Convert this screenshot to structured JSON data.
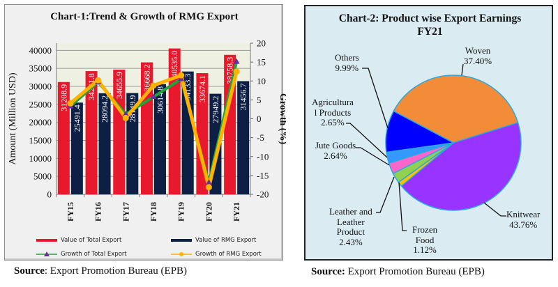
{
  "chart_data": [
    {
      "type": "bar",
      "title": "Chart-1:Trend  & Growth of RMG Export",
      "xlabel": "",
      "ylabel": "Amount (Million USD)",
      "y2label": "Growth (%)",
      "categories": [
        "FY15",
        "FY16",
        "FY17",
        "FY18",
        "FY19",
        "FY20",
        "FY21"
      ],
      "ylim": [
        0,
        42000
      ],
      "yticks": [
        "0",
        "5000",
        "10000",
        "15000",
        "20000",
        "25000",
        "30000",
        "35000",
        "40000"
      ],
      "y2lim": [
        -20,
        20
      ],
      "y2ticks": [
        "-20",
        "-15",
        "-10",
        "-5",
        "0",
        "5",
        "10",
        "15",
        "20"
      ],
      "grid": true,
      "legend_position": "bottom",
      "series": [
        {
          "name": "Value of Total Export",
          "kind": "bar",
          "axis": "left",
          "color": "#e8192c",
          "values": [
            31208.9,
            34241.8,
            34655.9,
            36668.2,
            40535.0,
            33674.1,
            38758.3
          ],
          "labels": [
            "31208.9",
            "34241.8",
            "34655.9",
            "36668.2",
            "40535.0",
            "33674.1",
            "38758.3"
          ]
        },
        {
          "name": "Value of RMG Export",
          "kind": "bar",
          "axis": "left",
          "color": "#0d1f45",
          "values": [
            25491.4,
            28094.2,
            28149.9,
            30614.8,
            34133.3,
            27949.2,
            31456.7
          ],
          "labels": [
            "25491.4",
            "28094.2",
            "28149.9",
            "30614.8",
            "34133.3",
            "27949.2",
            "31456.7"
          ]
        },
        {
          "name": "Growth of Total Export",
          "kind": "line",
          "axis": "right",
          "color": "#1fa33a",
          "marker_color": "#6a2c9e",
          "marker": "triangle",
          "values": [
            3.3,
            9.7,
            1.2,
            5.8,
            10.5,
            -16.9,
            15.1
          ]
        },
        {
          "name": "Growth of RMG Export",
          "kind": "line",
          "axis": "right",
          "color": "#ffb300",
          "marker_color": "#ffb300",
          "marker": "diamond",
          "values": [
            4.1,
            10.2,
            0.2,
            8.8,
            11.5,
            -18.1,
            12.5
          ]
        }
      ],
      "source_label": "Source",
      "source_text": ": Export Promotion Bureau (EPB)"
    },
    {
      "type": "pie",
      "title": "Chart-2: Product wise Export Earnings",
      "subtitle": "FY21",
      "slices": [
        {
          "label": "Woven",
          "value": 37.4,
          "display": "37.40%",
          "color": "#f28c38"
        },
        {
          "label": "Knitwear",
          "value": 43.76,
          "display": "43.76%",
          "color": "#9933ff"
        },
        {
          "label": "Frozen Food",
          "value": 1.12,
          "display": "1.12%",
          "color": "#ffc000"
        },
        {
          "label": "Leather and Leather Product",
          "value": 2.43,
          "display": "2.43%",
          "color": "#92d050"
        },
        {
          "label": "Jute Goods",
          "value": 2.64,
          "display": "2.64%",
          "color": "#ff66cc"
        },
        {
          "label": "Agricultural Products",
          "value": 2.65,
          "display": "2.65%",
          "color": "#3399ff"
        },
        {
          "label": "Others",
          "value": 9.99,
          "display": "9.99%",
          "color": "#0000ff"
        }
      ],
      "source_label": "Source:",
      "source_text": " Export Promotion Bureau (EPB)"
    }
  ],
  "pie_labels": {
    "woven": [
      "Woven",
      "37.40%"
    ],
    "knitwear": [
      "Knitwear",
      "43.76%"
    ],
    "frozen": [
      "Frozen",
      "Food",
      "1.12%"
    ],
    "leather": [
      "Leather and",
      "Leather",
      "Product",
      "2.43%"
    ],
    "jute": [
      "Jute Goods",
      "2.64%"
    ],
    "agri": [
      "Agricultura",
      "l Products",
      "2.65%"
    ],
    "others": [
      "Others",
      "9.99%"
    ]
  }
}
